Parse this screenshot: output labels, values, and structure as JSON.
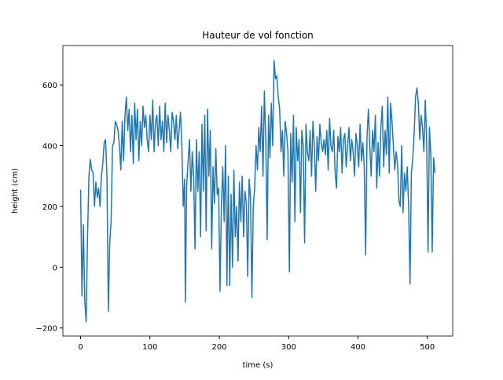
{
  "chart_data": {
    "type": "line",
    "title": "Hauteur de vol fonction",
    "x_label": "time (s)",
    "y_label": "height (cm)",
    "x": [
      0,
      2,
      4,
      6,
      8,
      10,
      12,
      14,
      16,
      18,
      20,
      22,
      24,
      26,
      28,
      30,
      32,
      34,
      36,
      38,
      40,
      42,
      44,
      46,
      48,
      50,
      52,
      54,
      56,
      58,
      60,
      62,
      64,
      66,
      68,
      70,
      72,
      74,
      76,
      78,
      80,
      82,
      84,
      86,
      88,
      90,
      92,
      94,
      96,
      98,
      100,
      102,
      104,
      106,
      108,
      110,
      112,
      114,
      116,
      118,
      120,
      122,
      124,
      126,
      128,
      130,
      132,
      134,
      136,
      138,
      140,
      142,
      144,
      146,
      148,
      150,
      151,
      153,
      155,
      157,
      159,
      161,
      163,
      165,
      167,
      169,
      171,
      173,
      175,
      177,
      179,
      181,
      183,
      185,
      187,
      189,
      191,
      193,
      195,
      197,
      199,
      201,
      203,
      205,
      207,
      209,
      211,
      213,
      215,
      217,
      219,
      221,
      223,
      225,
      227,
      229,
      231,
      233,
      235,
      237,
      239,
      241,
      243,
      245,
      247,
      249,
      251,
      253,
      255,
      257,
      259,
      261,
      263,
      265,
      267,
      269,
      271,
      273,
      275,
      277,
      279,
      281,
      283,
      285,
      287,
      289,
      291,
      293,
      295,
      297,
      299,
      301,
      303,
      305,
      307,
      309,
      311,
      313,
      315,
      317,
      319,
      321,
      323,
      325,
      327,
      329,
      331,
      333,
      335,
      337,
      339,
      341,
      343,
      345,
      347,
      349,
      351,
      353,
      355,
      357,
      359,
      361,
      363,
      365,
      367,
      369,
      371,
      373,
      375,
      377,
      379,
      381,
      383,
      385,
      387,
      389,
      391,
      393,
      395,
      397,
      399,
      401,
      403,
      405,
      407,
      409,
      411,
      413,
      415,
      417,
      419,
      421,
      423,
      425,
      427,
      429,
      431,
      433,
      435,
      437,
      439,
      441,
      443,
      445,
      447,
      449,
      451,
      453,
      455,
      457,
      459,
      461,
      463,
      465,
      467,
      469,
      471,
      473,
      475,
      477,
      479,
      481,
      483,
      485,
      487,
      489,
      491,
      493,
      495,
      497,
      499,
      501,
      503,
      505,
      507,
      509,
      511
    ],
    "series": [
      {
        "name": "height",
        "color": "#1f77b4",
        "values": [
          255,
          -95,
          140,
          -110,
          -180,
          100,
          300,
          355,
          320,
          310,
          200,
          280,
          230,
          260,
          200,
          300,
          340,
          410,
          420,
          300,
          -145,
          80,
          150,
          400,
          410,
          480,
          470,
          450,
          400,
          320,
          480,
          350,
          500,
          560,
          450,
          520,
          380,
          500,
          340,
          540,
          420,
          520,
          350,
          480,
          400,
          530,
          460,
          500,
          420,
          380,
          500,
          420,
          550,
          380,
          480,
          500,
          400,
          530,
          420,
          480,
          380,
          540,
          410,
          500,
          450,
          380,
          510,
          480,
          420,
          500,
          390,
          450,
          510,
          400,
          200,
          290,
          -115,
          270,
          350,
          420,
          250,
          380,
          300,
          60,
          420,
          250,
          380,
          100,
          470,
          250,
          500,
          120,
          520,
          300,
          450,
          60,
          330,
          210,
          390,
          240,
          260,
          -80,
          200,
          330,
          150,
          400,
          -60,
          300,
          -60,
          240,
          0,
          320,
          100,
          200,
          20,
          280,
          150,
          300,
          100,
          250,
          210,
          -30,
          290,
          230,
          -100,
          200,
          260,
          400,
          320,
          460,
          380,
          530,
          300,
          580,
          420,
          90,
          500,
          360,
          540,
          400,
          680,
          620,
          630,
          560,
          520,
          380,
          450,
          300,
          480,
          440,
          380,
          -15,
          440,
          280,
          500,
          150,
          460,
          350,
          420,
          180,
          450,
          400,
          80,
          470,
          380,
          350,
          450,
          300,
          480,
          400,
          250,
          430,
          350,
          470,
          410,
          380,
          420,
          370,
          450,
          320,
          490,
          400,
          380,
          450,
          310,
          260,
          430,
          380,
          460,
          310,
          420,
          440,
          330,
          400,
          460,
          350,
          420,
          380,
          300,
          440,
          400,
          330,
          470,
          350,
          410,
          330,
          40,
          430,
          520,
          400,
          300,
          450,
          380,
          500,
          260,
          410,
          300,
          460,
          530,
          330,
          450,
          370,
          560,
          310,
          540,
          480,
          400,
          320,
          380,
          340,
          220,
          200,
          400,
          180,
          310,
          250,
          330,
          200,
          -55,
          310,
          360,
          440,
          560,
          590,
          540,
          420,
          500,
          460,
          380,
          550,
          420,
          50,
          460,
          370,
          50,
          360,
          310
        ]
      }
    ],
    "xlim": [
      -25.55,
      536.55
    ],
    "ylim": [
      -226.5,
      729.5
    ],
    "xticks": [
      0,
      100,
      200,
      300,
      400,
      500
    ],
    "yticks": [
      {
        "value": -200,
        "label": "−200"
      },
      0,
      200,
      400,
      600
    ]
  }
}
